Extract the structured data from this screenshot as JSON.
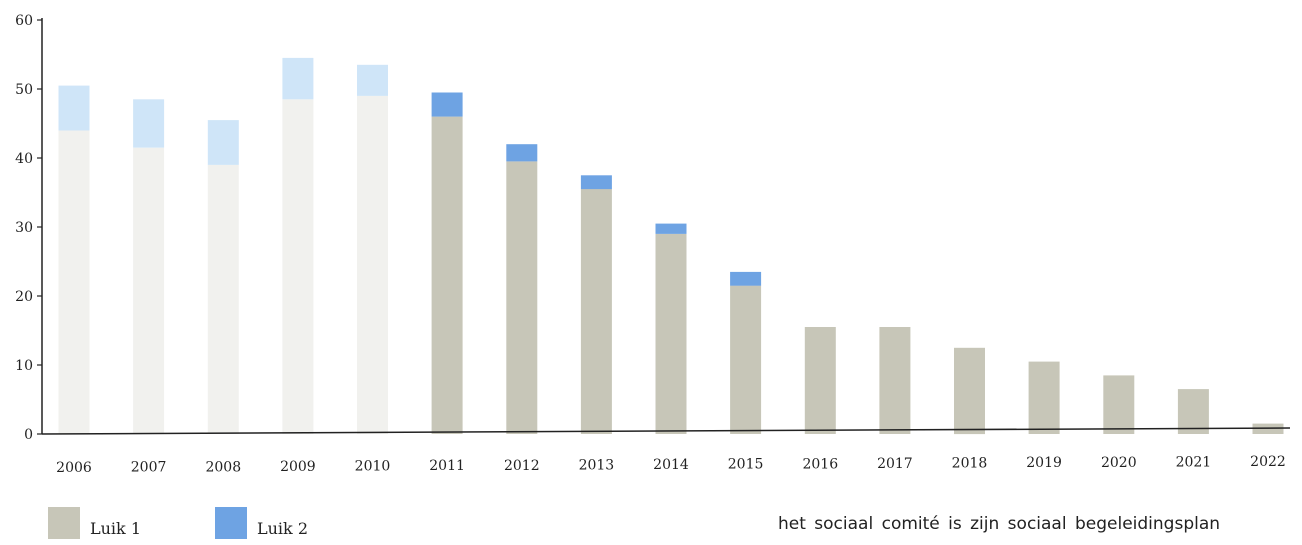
{
  "chart_data": {
    "type": "bar",
    "stacked": true,
    "categories": [
      "2006",
      "2007",
      "2008",
      "2009",
      "2010",
      "2011",
      "2012",
      "2013",
      "2014",
      "2015",
      "2016",
      "2017",
      "2018",
      "2019",
      "2020",
      "2021",
      "2022"
    ],
    "series": [
      {
        "name": "Luik 1",
        "values": [
          44,
          41.5,
          39,
          48.5,
          49,
          46,
          39.5,
          35.5,
          29,
          21.5,
          15.5,
          15.5,
          12.5,
          10.5,
          8.5,
          6.5,
          1.5
        ],
        "color": "#c7c6b8",
        "faded_color": "#f1f1ee"
      },
      {
        "name": "Luik 2",
        "values": [
          6.5,
          7,
          6.5,
          6,
          4.5,
          3.5,
          2.5,
          2,
          1.5,
          2,
          0,
          0,
          0,
          0,
          0,
          0,
          0
        ],
        "color": "#6ea3e3",
        "faded_color": "#cfe5f8"
      }
    ],
    "faded_categories": [
      "2006",
      "2007",
      "2008",
      "2009",
      "2010"
    ],
    "ylim": [
      0,
      60
    ],
    "yticks": [
      0,
      10,
      20,
      30,
      40,
      50,
      60
    ],
    "ytick_labels": [
      "0",
      "10",
      "20",
      "30",
      "40",
      "50",
      "60"
    ],
    "grid": false,
    "legend_position": "bottom-left",
    "title": "",
    "xlabel": "",
    "ylabel": ""
  },
  "legend": {
    "luik1_label": "Luik 1",
    "luik2_label": "Luik 2",
    "luik1_color": "#c7c6b8",
    "luik2_color": "#6ea3e3"
  },
  "footer_text": "het sociaal comité is zijn sociaal begeleidingsplan"
}
